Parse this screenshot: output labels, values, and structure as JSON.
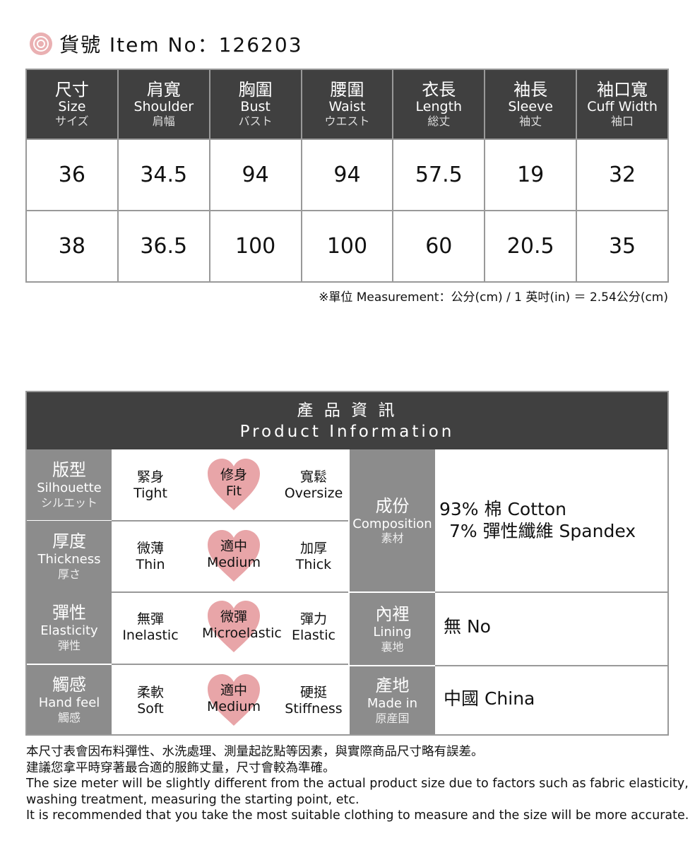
{
  "header": {
    "title": "貨號 Item No：126203",
    "icon": "rose-icon",
    "accent": "#e8a5a8"
  },
  "size_table": {
    "columns": [
      {
        "zh": "尺寸",
        "en": "Size",
        "jp": "サイズ"
      },
      {
        "zh": "肩寬",
        "en": "Shoulder",
        "jp": "肩幅"
      },
      {
        "zh": "胸圍",
        "en": "Bust",
        "jp": "バスト"
      },
      {
        "zh": "腰圍",
        "en": "Waist",
        "jp": "ウエスト"
      },
      {
        "zh": "衣長",
        "en": "Length",
        "jp": "総丈"
      },
      {
        "zh": "袖長",
        "en": "Sleeve",
        "jp": "袖丈"
      },
      {
        "zh": "袖口寬",
        "en": "Cuff Width",
        "jp": "袖口"
      }
    ],
    "rows": [
      [
        "36",
        "34.5",
        "94",
        "94",
        "57.5",
        "19",
        "32"
      ],
      [
        "38",
        "36.5",
        "100",
        "100",
        "60",
        "20.5",
        "35"
      ]
    ],
    "note": "※單位 Measurement：公分(cm) / 1 英吋(in) ＝ 2.54公分(cm)"
  },
  "info": {
    "title_zh": "產 品 資 訊",
    "title_en": "Product Information",
    "attributes": [
      {
        "zh": "版型",
        "en": "Silhouette",
        "jp": "シルエット",
        "options": [
          {
            "zh": "緊身",
            "en": "Tight"
          },
          {
            "zh": "修身",
            "en": "Fit"
          },
          {
            "zh": "寬鬆",
            "en": "Oversize"
          }
        ],
        "selected": 1
      },
      {
        "zh": "厚度",
        "en": "Thickness",
        "jp": "厚さ",
        "options": [
          {
            "zh": "微薄",
            "en": "Thin"
          },
          {
            "zh": "適中",
            "en": "Medium"
          },
          {
            "zh": "加厚",
            "en": "Thick"
          }
        ],
        "selected": 1
      },
      {
        "zh": "彈性",
        "en": "Elasticity",
        "jp": "弾性",
        "options": [
          {
            "zh": "無彈",
            "en": "Inelastic"
          },
          {
            "zh": "微彈",
            "en": "Microelastic"
          },
          {
            "zh": "彈力",
            "en": "Elastic"
          }
        ],
        "selected": 1
      },
      {
        "zh": "觸感",
        "en": "Hand feel",
        "jp": "觸感",
        "options": [
          {
            "zh": "柔軟",
            "en": "Soft"
          },
          {
            "zh": "適中",
            "en": "Medium"
          },
          {
            "zh": "硬挺",
            "en": "Stiffness"
          }
        ],
        "selected": 1
      }
    ],
    "composition": {
      "zh": "成份",
      "en": "Composition",
      "jp": "素材",
      "lines": [
        "93% 棉 Cotton",
        "7% 彈性纖維 Spandex"
      ]
    },
    "lining": {
      "zh": "內裡",
      "en": "Lining",
      "jp": "裏地",
      "value": "無 No"
    },
    "origin": {
      "zh": "產地",
      "en": "Made in",
      "jp": "原産国",
      "value": "中國 China"
    }
  },
  "notes": [
    "本尺寸表會因布料彈性、水洗處理、測量起訖點等因素，與實際商品尺寸略有誤差。",
    "建議您拿平時穿著最合適的服飾丈量，尺寸會較為準確。",
    "The size meter will be slightly different from the actual product size due to factors such as fabric elasticity,",
    "washing treatment, measuring the starting point, etc.",
    "It is recommended that you take the most suitable clothing to measure and the size will be more accurate."
  ]
}
